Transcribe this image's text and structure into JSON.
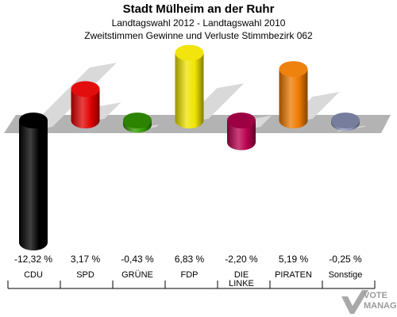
{
  "header": {
    "title": "Stadt Mülheim an der Ruhr",
    "subtitle": "Landtagswahl 2012 - Landtagswahl 2010",
    "subtitle2": "Zweitstimmen Gewinne und Verluste Stimmbezirk 062"
  },
  "logo": {
    "line1": "VOTE",
    "line2": "MANAGER",
    "icon": "vote-check-icon"
  },
  "chart_data": {
    "type": "bar",
    "categories": [
      "CDU",
      "SPD",
      "GRÜNE",
      "FDP",
      "DIE LINKE",
      "PIRATEN",
      "Sonstige"
    ],
    "category_lines": [
      [
        "CDU"
      ],
      [
        "SPD"
      ],
      [
        "GRÜNE"
      ],
      [
        "FDP"
      ],
      [
        "DIE",
        "LINKE"
      ],
      [
        "PIRATEN"
      ],
      [
        "Sonstige"
      ]
    ],
    "values": [
      -12.32,
      3.17,
      -0.43,
      6.83,
      -2.2,
      5.19,
      -0.25
    ],
    "value_labels": [
      "-12,32 %",
      "3,17 %",
      "-0,43 %",
      "6,83 %",
      "-2,20 %",
      "5,19 %",
      "-0,25 %"
    ],
    "colors": [
      "#000000",
      "#e00000",
      "#339a00",
      "#f0e400",
      "#b8004e",
      "#ee7a00",
      "#8c93b8"
    ],
    "title": "Stadt Mülheim an der Ruhr",
    "xlabel": "",
    "ylabel": "",
    "ylim": [
      -13,
      8
    ]
  }
}
